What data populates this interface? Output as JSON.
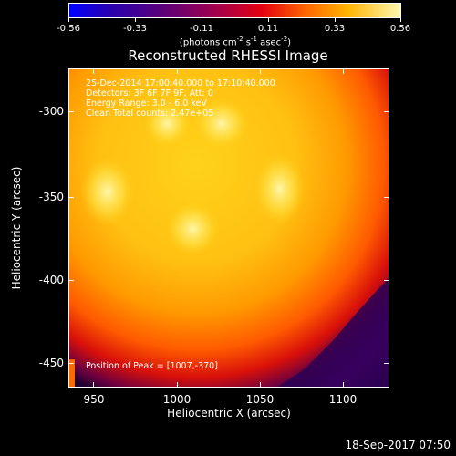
{
  "colorbar": {
    "ticks": [
      "-0.56",
      "-0.33",
      "-0.11",
      "0.11",
      "0.33",
      "0.56"
    ],
    "units_text": "(photons cm",
    "units_exp1": "-2",
    "units_mid1": " s",
    "units_exp2": "-1",
    "units_mid2": " asec",
    "units_exp3": "-2",
    "units_end": ")"
  },
  "title": "Reconstructed RHESSI Image",
  "annotations": {
    "time": "25-Dec-2014 17:00:40.000 to 17:10:40.000",
    "detectors": "Detectors: 3F 6F 7F 9F, Att: 0",
    "energy": "Energy Range: 3.0 - 6.0 keV",
    "counts": "Clean    Total counts: 2.47e+05",
    "peak": "Position of Peak = [1007,-370]"
  },
  "axes": {
    "xlabel": "Heliocentric X (arcsec)",
    "ylabel": "Heliocentric Y (arcsec)",
    "xticks": [
      "950",
      "1000",
      "1050",
      "1100"
    ],
    "yticks": [
      "-300",
      "-350",
      "-400",
      "-450"
    ]
  },
  "footer": "18-Sep-2017 07:50",
  "colors": {
    "background": "#000000",
    "text": "#ffffff"
  }
}
